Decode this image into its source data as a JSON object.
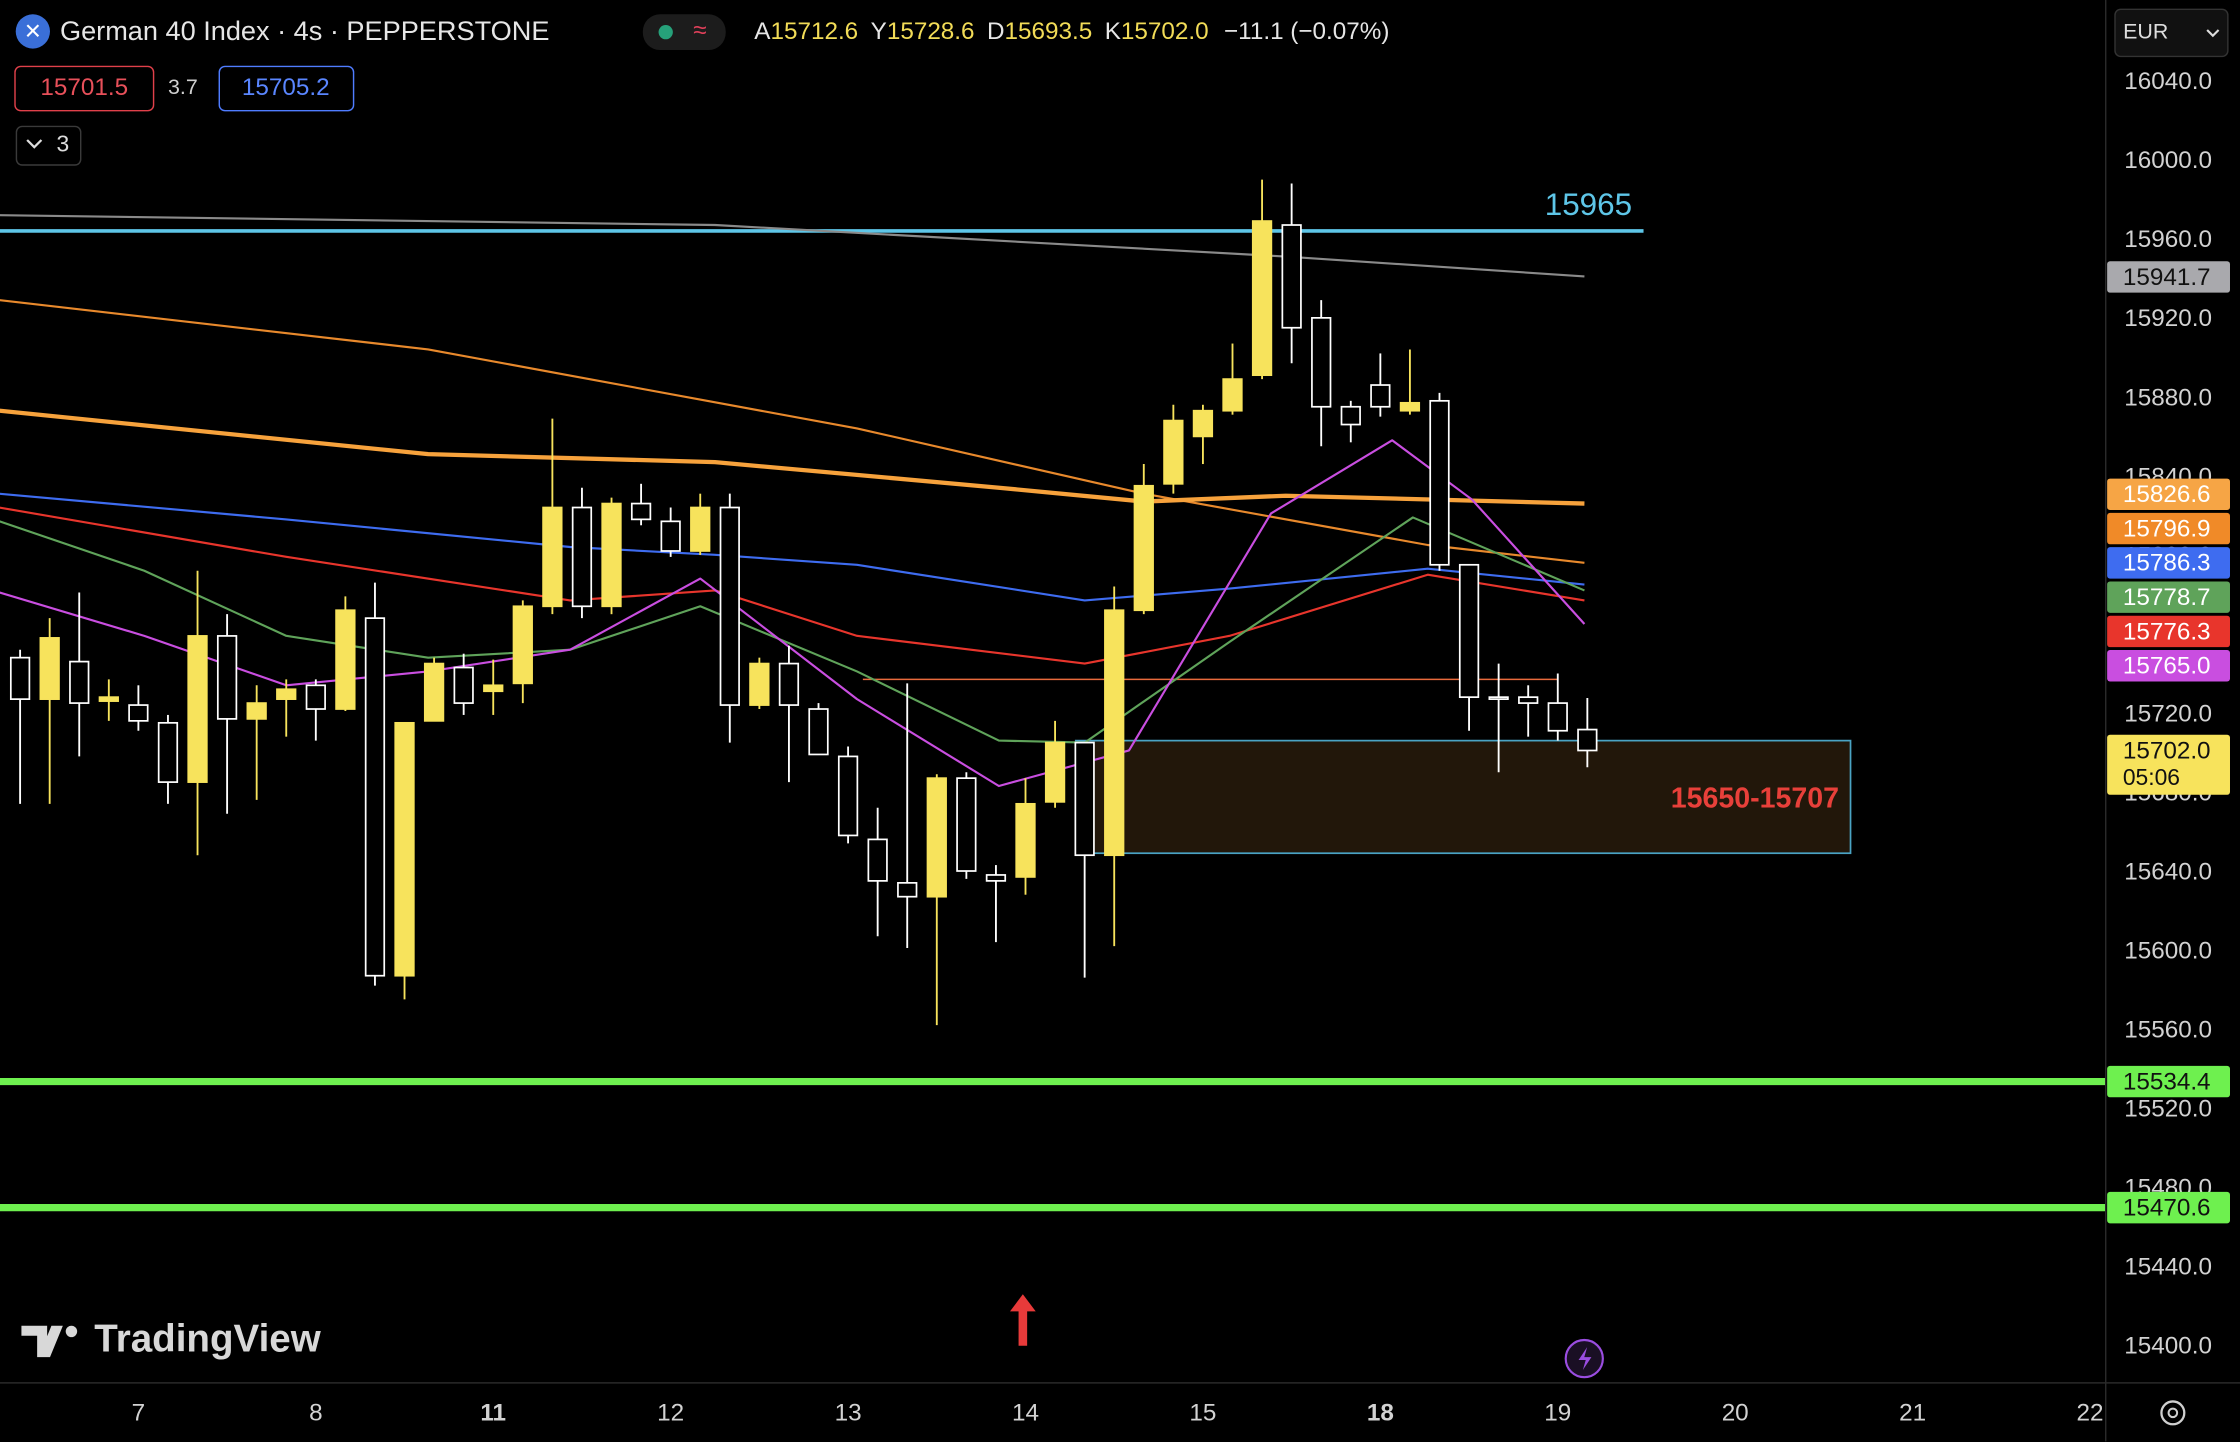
{
  "header": {
    "symbol": "German 40 Index · 4s · PEPPERSTONE",
    "ohlc": [
      {
        "key": "A",
        "value": "15712.6"
      },
      {
        "key": "Y",
        "value": "15728.6"
      },
      {
        "key": "D",
        "value": "15693.5"
      },
      {
        "key": "K",
        "value": "15702.0"
      }
    ],
    "change": "−11.1 (−0.07%)",
    "bid": "15701.5",
    "spread": "3.7",
    "ask": "15705.2",
    "indicators": "3",
    "currency": "EUR",
    "logo": "TradingView"
  },
  "chart_data": {
    "type": "candlestick",
    "open": [
      15749,
      15728,
      15747,
      15727,
      15725,
      15716,
      15686,
      15760,
      15718,
      15728,
      15735,
      15723,
      15769,
      15588,
      15717,
      15744,
      15732,
      15736,
      15775,
      15825,
      15775,
      15827,
      15818,
      15803,
      15825,
      15725,
      15746,
      15723,
      15699,
      15657,
      15635,
      15628,
      15688,
      15639,
      15638,
      15676,
      15706,
      15649,
      15773,
      15837,
      15861,
      15874,
      15892,
      15968,
      15921,
      15876,
      15887,
      15874,
      15879,
      15796,
      15729,
      15729,
      15726,
      15712.6
    ],
    "high": [
      15753,
      15769,
      15782,
      15738,
      15735,
      15720,
      15793,
      15771,
      15735,
      15738,
      15738,
      15780,
      15787,
      15716,
      15749,
      15751,
      15748,
      15778,
      15870,
      15835,
      15830,
      15837,
      15825,
      15832,
      15832,
      15749,
      15755,
      15726,
      15704,
      15673,
      15736,
      15690,
      15691,
      15644,
      15688,
      15717,
      15706,
      15785,
      15847,
      15877,
      15877,
      15908,
      15991,
      15989,
      15930,
      15879,
      15903,
      15905,
      15883,
      15796,
      15746,
      15735,
      15741,
      15728.6
    ],
    "low": [
      15675,
      15675,
      15699,
      15717,
      15712,
      15675,
      15649,
      15670,
      15677,
      15709,
      15707,
      15722,
      15583,
      15576,
      15717,
      15720,
      15720,
      15726,
      15771,
      15769,
      15771,
      15816,
      15800,
      15801,
      15706,
      15723,
      15686,
      15700,
      15655,
      15608,
      15602,
      15563,
      15637,
      15605,
      15629,
      15673,
      15587,
      15603,
      15771,
      15832,
      15847,
      15872,
      15890,
      15898,
      15856,
      15858,
      15871,
      15872,
      15793,
      15712,
      15691,
      15709,
      15707,
      15693.5
    ],
    "close": [
      15728,
      15759,
      15726,
      15729,
      15717,
      15686,
      15760,
      15718,
      15726,
      15733,
      15723,
      15773,
      15588,
      15716,
      15746,
      15726,
      15735,
      15775,
      15825,
      15775,
      15827,
      15819,
      15803,
      15825,
      15725,
      15746,
      15725,
      15700,
      15659,
      15636,
      15628,
      15688,
      15641,
      15636,
      15675,
      15706,
      15649,
      15773,
      15836,
      15869,
      15874,
      15890,
      15970,
      15916,
      15876,
      15867,
      15876,
      15878,
      15796,
      15729,
      15728,
      15726,
      15712,
      15702.0
    ],
    "up_color": "#f7e35c",
    "down_color": "#000000",
    "down_border": "#ffffff",
    "xlim": [
      -0.68,
      70.53
    ],
    "xticks": [
      {
        "value": 4,
        "label": "7"
      },
      {
        "value": 10,
        "label": "8"
      },
      {
        "value": 16,
        "label": "11",
        "bold": true
      },
      {
        "value": 22,
        "label": "12"
      },
      {
        "value": 28,
        "label": "13"
      },
      {
        "value": 34,
        "label": "14"
      },
      {
        "value": 40,
        "label": "15"
      },
      {
        "value": 46,
        "label": "18",
        "bold": true
      },
      {
        "value": 52,
        "label": "19"
      },
      {
        "value": 58,
        "label": "20"
      },
      {
        "value": 64,
        "label": "21"
      },
      {
        "value": 70,
        "label": "22"
      }
    ],
    "ylim": [
      15381.9,
      16081.9
    ],
    "yticks": [
      {
        "value": 15400,
        "label": "15400.0"
      },
      {
        "value": 15440,
        "label": "15440.0"
      },
      {
        "value": 15480,
        "label": "15480.0"
      },
      {
        "value": 15520,
        "label": "15520.0"
      },
      {
        "value": 15560,
        "label": "15560.0"
      },
      {
        "value": 15600,
        "label": "15600.0"
      },
      {
        "value": 15640,
        "label": "15640.0"
      },
      {
        "value": 15680,
        "label": "15680.0"
      },
      {
        "value": 15720,
        "label": "15720.0"
      },
      {
        "value": 15760,
        "label": "15760.0"
      },
      {
        "value": 15800,
        "label": "15800.0"
      },
      {
        "value": 15840,
        "label": "15840.0"
      },
      {
        "value": 15880,
        "label": "15880.0"
      },
      {
        "value": 15920,
        "label": "15920.0"
      },
      {
        "value": 15960,
        "label": "15960.0"
      },
      {
        "value": 16000,
        "label": "16000.0"
      },
      {
        "value": 16040,
        "label": "16040.0"
      }
    ],
    "grid": false,
    "lines": [
      {
        "color": "#8a8a8a",
        "width": 1.5,
        "x": [
          -0.7,
          23.5,
          42.8,
          52.9
        ],
        "values": [
          15973,
          15968,
          15952,
          15942
        ]
      },
      {
        "color": "#e8892c",
        "width": 1.5,
        "x": [
          -0.7,
          13.8,
          28.3,
          38,
          47.6,
          52.9
        ],
        "values": [
          15930,
          15905,
          15865,
          15832,
          15806,
          15797
        ]
      },
      {
        "color": "#f7a23c",
        "width": 3,
        "x": [
          -0.7,
          13.8,
          23.5,
          33.1,
          38,
          42.8,
          52.9
        ],
        "values": [
          15874,
          15852,
          15848,
          15835,
          15828,
          15831,
          15827
        ]
      },
      {
        "color": "#3e6cf0",
        "width": 1.5,
        "x": [
          -0.7,
          9,
          18.6,
          23.5,
          28.3,
          36,
          40.9,
          47.6,
          52.9
        ],
        "values": [
          15832,
          15819,
          15805,
          15801,
          15796,
          15778,
          15784,
          15794,
          15786
        ]
      },
      {
        "color": "#e8352c",
        "width": 1.5,
        "x": [
          -0.7,
          9,
          18.6,
          23.5,
          28.3,
          36,
          40.9,
          47.6,
          52.9
        ],
        "values": [
          15825,
          15800,
          15778,
          15783,
          15760,
          15746,
          15760,
          15791,
          15778
        ]
      },
      {
        "color": "#5fa35a",
        "width": 1.5,
        "x": [
          -0.7,
          4.2,
          9,
          13.8,
          18.6,
          23,
          28.3,
          33.1,
          36,
          40.9,
          47.1,
          52.9
        ],
        "values": [
          15818,
          15793,
          15760,
          15749,
          15753,
          15775,
          15742,
          15707,
          15706,
          15757,
          15820,
          15783
        ]
      },
      {
        "color": "#c94ee0",
        "width": 1.5,
        "x": [
          -0.7,
          4.2,
          9,
          13.8,
          18.6,
          23,
          28.3,
          33.1,
          37.5,
          42.3,
          46.4,
          49.1,
          52.9
        ],
        "values": [
          15782,
          15760,
          15735,
          15742,
          15753,
          15789,
          15728,
          15684,
          15702,
          15822,
          15859,
          15829,
          15766
        ]
      }
    ],
    "levels": [
      {
        "value": 15965,
        "color": "#5ec6e8",
        "width": 2.5,
        "x": [
          -0.68,
          54.9
        ],
        "label": "15965"
      },
      {
        "value": 15738,
        "color": "#e86a3c",
        "width": 1,
        "x": [
          28.5,
          52.0
        ]
      },
      {
        "value": 15534.4,
        "color": "#6ef04f",
        "width": 5
      },
      {
        "value": 15470.6,
        "color": "#6ef04f",
        "width": 5
      }
    ],
    "zone": {
      "low": 15650,
      "high": 15707,
      "x": [
        35.7,
        61.9
      ],
      "label": "15650-15707"
    },
    "price_tags": [
      {
        "value": 15941.7,
        "color": "#a9a9ad",
        "text_color": "#111111"
      },
      {
        "value": 15826.6,
        "color": "#f6a545",
        "text_color": "#ffffff"
      },
      {
        "value": 15796.9,
        "color": "#f08a28",
        "text_color": "#ffffff"
      },
      {
        "value": 15786.3,
        "color": "#3e6cf0",
        "text_color": "#ffffff"
      },
      {
        "value": 15778.7,
        "color": "#5fa35a",
        "text_color": "#ffffff"
      },
      {
        "value": 15776.3,
        "color": "#e8352c",
        "text_color": "#ffffff"
      },
      {
        "value": {
          "value": 15765,
          "label": "15765.0"
        },
        "color": "#c94ee0",
        "text_color": "#ffffff"
      },
      {
        "value": {
          "value": 15702,
          "label": "15702.0"
        },
        "countdown": "05:06",
        "color": "#f7e35c",
        "text_color": "#111111"
      },
      {
        "value": 15534.4,
        "color": "#6ef04f",
        "text_color": "#111111"
      },
      {
        "value": 15470.6,
        "color": "#6ef04f",
        "text_color": "#111111"
      }
    ]
  }
}
